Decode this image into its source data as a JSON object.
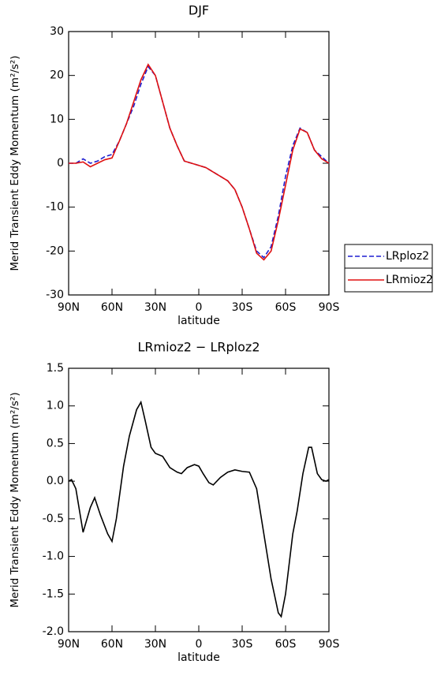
{
  "chart_data": [
    {
      "type": "line",
      "title": "DJF",
      "xlabel": "latitude",
      "ylabel": "Merid Transient Eddy Momentum (m²/s²)",
      "x": [
        90,
        85,
        80,
        75,
        70,
        65,
        60,
        55,
        50,
        45,
        40,
        35,
        30,
        25,
        20,
        15,
        10,
        5,
        0,
        -5,
        -10,
        -15,
        -20,
        -25,
        -30,
        -35,
        -40,
        -45,
        -50,
        -55,
        -60,
        -65,
        -70,
        -75,
        -80,
        -85,
        -90
      ],
      "series": [
        {
          "name": "LRploz2",
          "color": "#1f1fd0",
          "dash": true,
          "values": [
            0,
            0,
            1,
            0,
            0.5,
            1.5,
            2,
            5,
            9,
            13,
            18,
            22,
            20,
            14,
            8,
            4,
            0.5,
            0,
            -0.5,
            -1,
            -2,
            -3,
            -4,
            -6,
            -10,
            -15,
            -20,
            -21.5,
            -19,
            -12,
            -3,
            4,
            8,
            7,
            3,
            1.5,
            0
          ]
        },
        {
          "name": "LRmioz2",
          "color": "#e01010",
          "dash": false,
          "values": [
            0,
            0,
            0.3,
            -0.8,
            0,
            0.8,
            1.2,
            5,
            9,
            14,
            19,
            22.5,
            20,
            14,
            8,
            4,
            0.5,
            0,
            -0.5,
            -1,
            -2,
            -3,
            -4,
            -6,
            -10,
            -15,
            -20.5,
            -22,
            -20,
            -13,
            -5,
            3,
            7.8,
            7,
            3,
            1,
            0
          ]
        }
      ],
      "xlim": [
        90,
        -90
      ],
      "xticks": [
        {
          "value": 90,
          "label": "90N"
        },
        {
          "value": 60,
          "label": "60N"
        },
        {
          "value": 30,
          "label": "30N"
        },
        0,
        {
          "value": -30,
          "label": "30S"
        },
        {
          "value": -60,
          "label": "60S"
        },
        {
          "value": -90,
          "label": "90S"
        }
      ],
      "ylim": [
        -30,
        30
      ],
      "yticks": [
        -30,
        -20,
        -10,
        0,
        10,
        20,
        30
      ],
      "legend": "right"
    },
    {
      "type": "line",
      "title": "LRmioz2 − LRploz2",
      "xlabel": "latitude",
      "ylabel": "Merid Transient Eddy Momentum (m²/s²)",
      "x": [
        90,
        88,
        85,
        80,
        75,
        72,
        68,
        63,
        60,
        57,
        52,
        48,
        43,
        40,
        37,
        33,
        30,
        25,
        20,
        15,
        12,
        8,
        3,
        0,
        -3,
        -7,
        -10,
        -15,
        -20,
        -25,
        -30,
        -35,
        -40,
        -45,
        -50,
        -55,
        -57,
        -60,
        -65,
        -68,
        -72,
        -76,
        -78,
        -82,
        -85,
        -88,
        -90
      ],
      "series": [
        {
          "color": "#000000",
          "dash": false,
          "values": [
            0,
            0.02,
            -0.1,
            -0.68,
            -0.35,
            -0.22,
            -0.45,
            -0.7,
            -0.8,
            -0.5,
            0.2,
            0.6,
            0.95,
            1.05,
            0.8,
            0.45,
            0.37,
            0.33,
            0.18,
            0.12,
            0.1,
            0.18,
            0.22,
            0.2,
            0.1,
            -0.02,
            -0.05,
            0.05,
            0.12,
            0.15,
            0.13,
            0.12,
            -0.1,
            -0.7,
            -1.3,
            -1.75,
            -1.8,
            -1.5,
            -0.7,
            -0.4,
            0.1,
            0.45,
            0.45,
            0.1,
            0.02,
            0,
            0.02
          ]
        }
      ],
      "xlim": [
        90,
        -90
      ],
      "xticks": [
        {
          "value": 90,
          "label": "90N"
        },
        {
          "value": 60,
          "label": "60N"
        },
        {
          "value": 30,
          "label": "30N"
        },
        0,
        {
          "value": -30,
          "label": "30S"
        },
        {
          "value": -60,
          "label": "60S"
        },
        {
          "value": -90,
          "label": "90S"
        }
      ],
      "ylim": [
        -2,
        1.5
      ],
      "yticks": [
        {
          "value": -2,
          "label": "-2.0"
        },
        -1.5,
        {
          "value": -1,
          "label": "-1.0"
        },
        -0.5,
        {
          "value": 0,
          "label": "0.0"
        },
        0.5,
        {
          "value": 1,
          "label": "1.0"
        },
        1.5
      ]
    }
  ]
}
